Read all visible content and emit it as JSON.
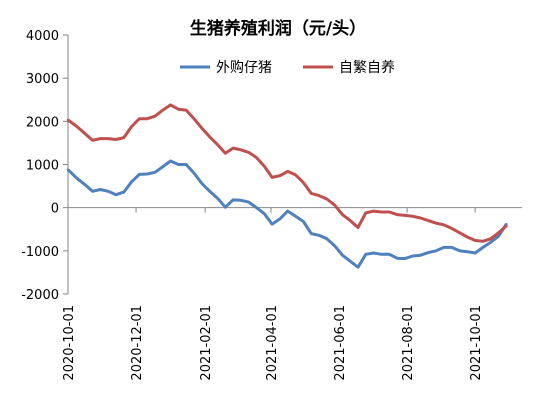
{
  "chart_data": {
    "type": "line",
    "title": "生猪养殖利润（元/头）",
    "xlabel": "",
    "ylabel": "",
    "ylim": [
      -2000,
      4000
    ],
    "yticks": [
      4000,
      3000,
      2000,
      1000,
      0,
      -1000,
      -2000
    ],
    "xlim": [
      "2020-10-01",
      "2021-11-12"
    ],
    "xticks": [
      "2020-10-01",
      "2020-12-01",
      "2021-02-01",
      "2021-04-01",
      "2021-06-01",
      "2021-08-01",
      "2021-10-01"
    ],
    "grid": false,
    "legend_position": "top",
    "series": [
      {
        "name": "外购仔猪",
        "color": "#4f81bd",
        "points": [
          [
            "2020-10-01",
            880
          ],
          [
            "2020-10-09",
            680
          ],
          [
            "2020-10-16",
            540
          ],
          [
            "2020-10-23",
            380
          ],
          [
            "2020-10-30",
            420
          ],
          [
            "2020-11-06",
            380
          ],
          [
            "2020-11-13",
            300
          ],
          [
            "2020-11-20",
            360
          ],
          [
            "2020-11-27",
            600
          ],
          [
            "2020-12-04",
            770
          ],
          [
            "2020-12-11",
            780
          ],
          [
            "2020-12-18",
            820
          ],
          [
            "2020-12-25",
            950
          ],
          [
            "2021-01-01",
            1080
          ],
          [
            "2021-01-08",
            1000
          ],
          [
            "2021-01-15",
            1000
          ],
          [
            "2021-01-22",
            800
          ],
          [
            "2021-01-29",
            560
          ],
          [
            "2021-02-05",
            380
          ],
          [
            "2021-02-12",
            220
          ],
          [
            "2021-02-19",
            10
          ],
          [
            "2021-02-26",
            180
          ],
          [
            "2021-03-05",
            170
          ],
          [
            "2021-03-12",
            130
          ],
          [
            "2021-03-19",
            0
          ],
          [
            "2021-03-26",
            -140
          ],
          [
            "2021-04-02",
            -380
          ],
          [
            "2021-04-09",
            -260
          ],
          [
            "2021-04-16",
            -80
          ],
          [
            "2021-04-23",
            -200
          ],
          [
            "2021-04-30",
            -320
          ],
          [
            "2021-05-07",
            -600
          ],
          [
            "2021-05-14",
            -640
          ],
          [
            "2021-05-21",
            -720
          ],
          [
            "2021-05-28",
            -880
          ],
          [
            "2021-06-04",
            -1100
          ],
          [
            "2021-06-11",
            -1240
          ],
          [
            "2021-06-18",
            -1380
          ],
          [
            "2021-06-25",
            -1080
          ],
          [
            "2021-07-02",
            -1050
          ],
          [
            "2021-07-09",
            -1080
          ],
          [
            "2021-07-16",
            -1080
          ],
          [
            "2021-07-23",
            -1170
          ],
          [
            "2021-07-30",
            -1180
          ],
          [
            "2021-08-06",
            -1120
          ],
          [
            "2021-08-13",
            -1100
          ],
          [
            "2021-08-20",
            -1040
          ],
          [
            "2021-08-27",
            -1000
          ],
          [
            "2021-09-03",
            -920
          ],
          [
            "2021-09-10",
            -920
          ],
          [
            "2021-09-17",
            -1000
          ],
          [
            "2021-09-24",
            -1020
          ],
          [
            "2021-10-01",
            -1050
          ],
          [
            "2021-10-08",
            -920
          ],
          [
            "2021-10-15",
            -800
          ],
          [
            "2021-10-22",
            -660
          ],
          [
            "2021-10-29",
            -380
          ]
        ]
      },
      {
        "name": "自繁自养",
        "color": "#c0504d",
        "points": [
          [
            "2020-10-01",
            2030
          ],
          [
            "2020-10-09",
            1880
          ],
          [
            "2020-10-16",
            1720
          ],
          [
            "2020-10-23",
            1560
          ],
          [
            "2020-10-30",
            1600
          ],
          [
            "2020-11-06",
            1600
          ],
          [
            "2020-11-13",
            1580
          ],
          [
            "2020-11-20",
            1620
          ],
          [
            "2020-11-27",
            1880
          ],
          [
            "2020-12-04",
            2060
          ],
          [
            "2020-12-11",
            2060
          ],
          [
            "2020-12-18",
            2120
          ],
          [
            "2020-12-25",
            2260
          ],
          [
            "2021-01-01",
            2380
          ],
          [
            "2021-01-08",
            2280
          ],
          [
            "2021-01-15",
            2260
          ],
          [
            "2021-01-22",
            2060
          ],
          [
            "2021-01-29",
            1840
          ],
          [
            "2021-02-05",
            1640
          ],
          [
            "2021-02-12",
            1460
          ],
          [
            "2021-02-19",
            1260
          ],
          [
            "2021-02-26",
            1380
          ],
          [
            "2021-03-05",
            1340
          ],
          [
            "2021-03-12",
            1280
          ],
          [
            "2021-03-19",
            1160
          ],
          [
            "2021-03-26",
            960
          ],
          [
            "2021-04-02",
            700
          ],
          [
            "2021-04-09",
            740
          ],
          [
            "2021-04-16",
            840
          ],
          [
            "2021-04-23",
            760
          ],
          [
            "2021-04-30",
            580
          ],
          [
            "2021-05-07",
            330
          ],
          [
            "2021-05-14",
            280
          ],
          [
            "2021-05-21",
            200
          ],
          [
            "2021-05-28",
            60
          ],
          [
            "2021-06-04",
            -160
          ],
          [
            "2021-06-11",
            -300
          ],
          [
            "2021-06-18",
            -460
          ],
          [
            "2021-06-25",
            -120
          ],
          [
            "2021-07-02",
            -80
          ],
          [
            "2021-07-09",
            -100
          ],
          [
            "2021-07-16",
            -100
          ],
          [
            "2021-07-23",
            -160
          ],
          [
            "2021-07-30",
            -180
          ],
          [
            "2021-08-06",
            -200
          ],
          [
            "2021-08-13",
            -240
          ],
          [
            "2021-08-20",
            -300
          ],
          [
            "2021-08-27",
            -360
          ],
          [
            "2021-09-03",
            -400
          ],
          [
            "2021-09-10",
            -480
          ],
          [
            "2021-09-17",
            -580
          ],
          [
            "2021-09-24",
            -680
          ],
          [
            "2021-10-01",
            -760
          ],
          [
            "2021-10-08",
            -780
          ],
          [
            "2021-10-15",
            -720
          ],
          [
            "2021-10-22",
            -580
          ],
          [
            "2021-10-29",
            -420
          ]
        ]
      }
    ]
  }
}
